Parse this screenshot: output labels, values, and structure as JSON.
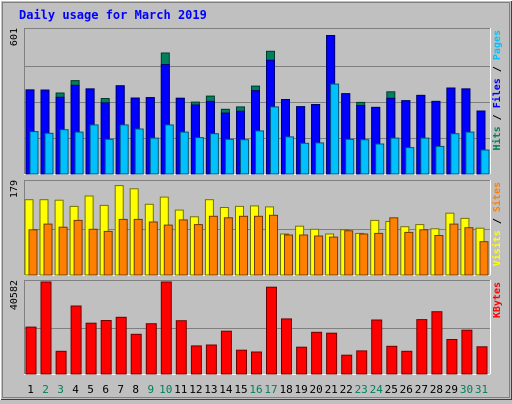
{
  "chart_data": {
    "type": "bar",
    "title": "Daily usage for March 2019",
    "colors": {
      "background": "#c0c0c0",
      "frame_dark": "#808080",
      "title": "#0000ff",
      "hits": "#00805c",
      "files": "#0000ff",
      "pages": "#00c0ff",
      "visits": "#ffff00",
      "sites": "#ff8000",
      "kbytes": "#ff0000",
      "weekend_label": "#00805c",
      "weekday_label": "#000000"
    },
    "categories": [
      "1",
      "2",
      "3",
      "4",
      "5",
      "6",
      "7",
      "8",
      "9",
      "10",
      "11",
      "12",
      "13",
      "14",
      "15",
      "16",
      "17",
      "18",
      "19",
      "20",
      "21",
      "22",
      "23",
      "24",
      "25",
      "26",
      "27",
      "28",
      "29",
      "30",
      "31"
    ],
    "weekend_days": [
      "2",
      "3",
      "9",
      "10",
      "16",
      "17",
      "23",
      "24",
      "30",
      "31"
    ],
    "panels": [
      {
        "id": "hits-files-pages",
        "axis_max_label": "601",
        "ylim": [
          0,
          601
        ],
        "legend": [
          {
            "text": "Pages",
            "color": "#00c0ff"
          },
          {
            "text": " / ",
            "color": "#000000"
          },
          {
            "text": "Files",
            "color": "#0000ff"
          },
          {
            "text": " / ",
            "color": "#000000"
          },
          {
            "text": "Hits",
            "color": "#00805c"
          }
        ],
        "series": [
          {
            "name": "Hits",
            "values": [
              351,
              350,
              338,
              390,
              355,
              315,
              368,
              317,
              319,
              505,
              316,
              300,
              325,
              270,
              280,
              367,
              512,
              311,
              281,
              290,
              578,
              335,
              299,
              278,
              343,
              306,
              328,
              303,
              359,
              355,
              263
            ]
          },
          {
            "name": "Files",
            "values": [
              351,
              350,
              320,
              370,
              355,
              297,
              368,
              317,
              319,
              457,
              316,
              288,
              303,
              254,
              262,
              348,
              475,
              311,
              281,
              290,
              578,
              335,
              286,
              278,
              316,
              306,
              328,
              303,
              359,
              355,
              263
            ]
          },
          {
            "name": "Pages",
            "values": [
              177,
              170,
              185,
              175,
              205,
              145,
              205,
              188,
              150,
              205,
              175,
              152,
              168,
              145,
              143,
              180,
              280,
              155,
              128,
              130,
              375,
              145,
              143,
              125,
              150,
              110,
              150,
              115,
              168,
              175,
              100
            ]
          }
        ]
      },
      {
        "id": "visits-sites",
        "axis_max_label": "179",
        "ylim": [
          0,
          179
        ],
        "legend": [
          {
            "text": "Sites",
            "color": "#ff8000"
          },
          {
            "text": " / ",
            "color": "#000000"
          },
          {
            "text": "Visits",
            "color": "#ffff00"
          }
        ],
        "series": [
          {
            "name": "Visits",
            "values": [
              145,
              145,
              144,
              132,
              152,
              134,
              172,
              166,
              136,
              150,
              125,
              112,
              145,
              130,
              132,
              133,
              131,
              79,
              94,
              88,
              79,
              87,
              80,
              105,
              103,
              93,
              97,
              89,
              119,
              109,
              90
            ]
          },
          {
            "name": "Sites",
            "values": [
              87,
              98,
              92,
              105,
              88,
              84,
              107,
              107,
              102,
              96,
              106,
              97,
              113,
              110,
              113,
              113,
              115,
              77,
              77,
              75,
              73,
              85,
              79,
              80,
              110,
              82,
              87,
              76,
              98,
              91,
              64
            ]
          }
        ]
      },
      {
        "id": "kbytes",
        "axis_max_label": "40582",
        "ylim": [
          0,
          40582
        ],
        "legend": [
          {
            "text": "KBytes",
            "color": "#ff0000"
          }
        ],
        "series": [
          {
            "name": "KBytes",
            "values": [
              20700,
              40582,
              10000,
              30000,
              22400,
              23600,
              25000,
              17500,
              22200,
              40582,
              23500,
              12400,
              12800,
              18900,
              10500,
              9700,
              38300,
              24300,
              11800,
              18400,
              18000,
              8300,
              10200,
              23800,
              12200,
              10000,
              24000,
              27500,
              15200,
              19300,
              12000
            ]
          }
        ]
      }
    ]
  }
}
